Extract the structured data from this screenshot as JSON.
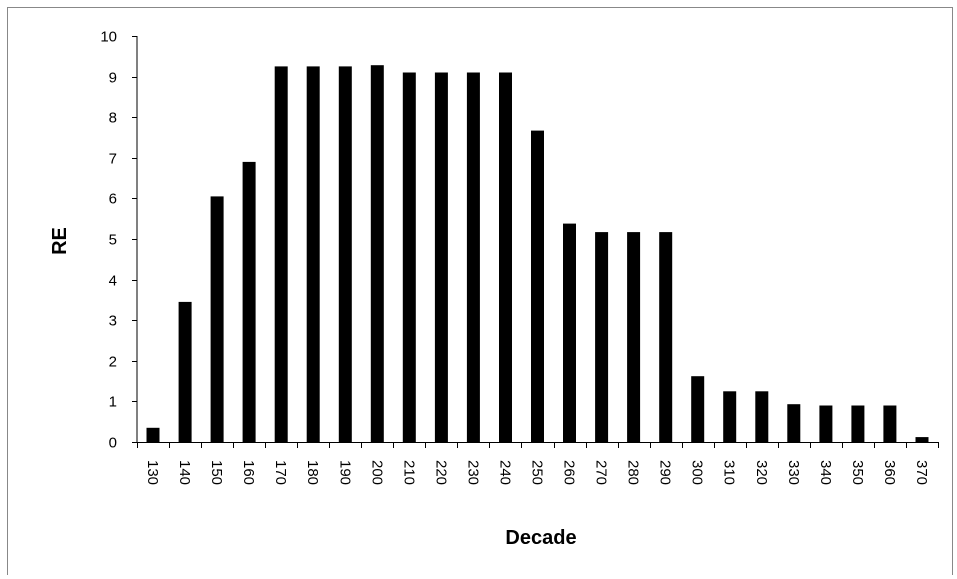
{
  "chart_data": {
    "type": "bar",
    "title": "",
    "xlabel": "Decade",
    "ylabel": "RE",
    "ylim": [
      0,
      10
    ],
    "yticks": [
      0,
      1,
      2,
      3,
      4,
      5,
      6,
      7,
      8,
      9,
      10
    ],
    "grid": false,
    "bar_color": "#000000",
    "categories": [
      "130",
      "140",
      "150",
      "160",
      "170",
      "180",
      "190",
      "200",
      "210",
      "220",
      "230",
      "240",
      "250",
      "260",
      "270",
      "280",
      "290",
      "300",
      "310",
      "320",
      "330",
      "340",
      "350",
      "360",
      "370"
    ],
    "values": [
      0.35,
      3.45,
      6.05,
      6.9,
      9.25,
      9.25,
      9.25,
      9.28,
      9.1,
      9.1,
      9.1,
      9.1,
      7.67,
      5.38,
      5.17,
      5.17,
      5.17,
      1.62,
      1.25,
      1.25,
      0.93,
      0.9,
      0.9,
      0.9,
      0.12
    ]
  }
}
